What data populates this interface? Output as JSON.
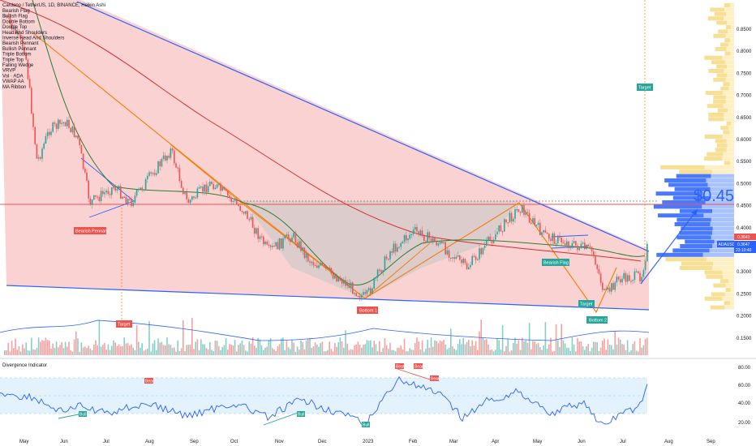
{
  "header": {
    "symbol_title": "Cardano / TetherUS, 1D, BINANCE, Heikin Ashi",
    "indicators": [
      "Bearish Flag",
      "Bullish Flag",
      "Double Bottom",
      "Double Top",
      "Head And Shoulders",
      "Inverse Head And Shoulders",
      "Bearish Pennant",
      "Bullish Pennant",
      "Triple Bottom",
      "Triple Top",
      "Falling Wedge",
      "VRVP",
      "Vol · ADA",
      "VWAP AA",
      "MA Ribbon"
    ]
  },
  "price_axis": {
    "ticks": [
      "0.8500",
      "0.8000",
      "0.7500",
      "0.7000",
      "0.6500",
      "0.6000",
      "0.5500",
      "0.5000",
      "0.4500",
      "0.4000",
      "0.3500",
      "0.3000",
      "0.2500",
      "0.2000",
      "0.1500"
    ],
    "symbol_tag": "ADAUSDT",
    "last_price": "0.3647",
    "countdown": "23:10:40",
    "red_tag": "0.3643"
  },
  "date_axis": [
    "May",
    "Jun",
    "Jul",
    "Aug",
    "Sep",
    "Oct",
    "Nov",
    "Dec",
    "2023",
    "Feb",
    "Mar",
    "Apr",
    "May",
    "Jun",
    "Jul",
    "Aug",
    "Sep"
  ],
  "annotations": {
    "big_target_price": "$0.45",
    "target_label": "Target",
    "bearish_pennant": "Bearish Pennant",
    "bearish_flag": "Bearish Flag",
    "bottom_1": "Bottom 1",
    "bottom_2": "Bottom 2",
    "target_left": "Target",
    "target_mid": "Target",
    "target_top": "Target"
  },
  "divergence": {
    "title": "Divergence Indicator",
    "ticks": [
      "80.00",
      "60.00",
      "40.00",
      "20.00"
    ],
    "bull": "Bull",
    "bear": "Bear"
  },
  "colors": {
    "up": "#26a69a",
    "down": "#ef5350",
    "trendline": "#2962ff",
    "pattern": "#f57c00",
    "wedge_fill": "#f8c3c3"
  },
  "chart_data": {
    "type": "candlestick",
    "title": "Cardano / TetherUS, 1D, BINANCE, Heikin Ashi",
    "y_range": [
      0.15,
      0.87
    ],
    "approx_close_path": [
      {
        "x": "May",
        "y": 0.6
      },
      {
        "x": "Jun",
        "y": 0.5
      },
      {
        "x": "Jul",
        "y": 0.44
      },
      {
        "x": "Aug",
        "y": 0.54
      },
      {
        "x": "Sep",
        "y": 0.47
      },
      {
        "x": "Oct",
        "y": 0.43
      },
      {
        "x": "Nov",
        "y": 0.38
      },
      {
        "x": "Dec",
        "y": 0.31
      },
      {
        "x": "2023",
        "y": 0.25
      },
      {
        "x": "Feb",
        "y": 0.39
      },
      {
        "x": "Mar",
        "y": 0.33
      },
      {
        "x": "Apr",
        "y": 0.45
      },
      {
        "x": "May",
        "y": 0.37
      },
      {
        "x": "Jun",
        "y": 0.27
      },
      {
        "x": "Jul",
        "y": 0.36
      }
    ],
    "divergence_range": [
      10,
      85
    ]
  }
}
